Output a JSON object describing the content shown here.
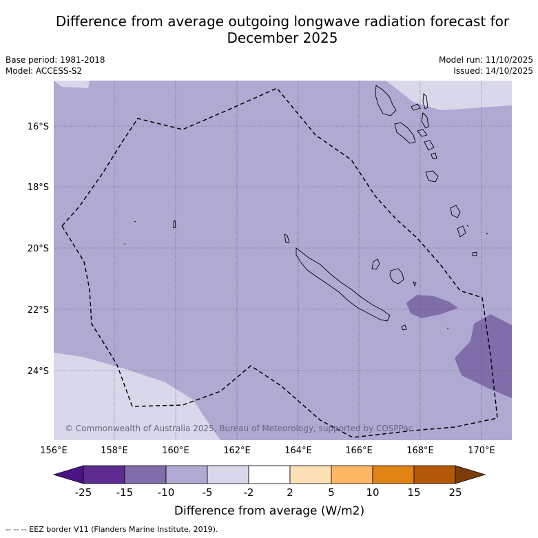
{
  "title": {
    "line1": "Difference from average outgoing longwave radiation forecast for",
    "line2": "December 2025"
  },
  "meta": {
    "base_period": "Base period: 1981-2018",
    "model": "Model: ACCESS-S2",
    "model_run": "Model run: 11/10/2025",
    "issued": "Issued: 14/10/2025"
  },
  "map": {
    "longitude_ticks": [
      "156°E",
      "158°E",
      "160°E",
      "162°E",
      "164°E",
      "166°E",
      "168°E",
      "170°E"
    ],
    "latitude_ticks": [
      "16°S",
      "18°S",
      "20°S",
      "22°S",
      "24°S"
    ],
    "copyright": "© Commonwealth of Australia 2025, Bureau of Meteorology, supported by COSPPac"
  },
  "colorbar": {
    "tick_labels": [
      "-25",
      "-15",
      "-10",
      "-5",
      "-2",
      "2",
      "5",
      "10",
      "15",
      "25"
    ],
    "colors": [
      "#4a1486",
      "#5e2c91",
      "#7f6ea9",
      "#b0a9d2",
      "#d8d8ea",
      "#ffffff",
      "#fee0b6",
      "#fdb762",
      "#e08214",
      "#b35806",
      "#7f3b08"
    ],
    "label": "Difference from average (W/m2)"
  },
  "footer": {
    "legend": "--  --  -- EEZ border V11 (Flanders Marine Institute, 2019)."
  }
}
